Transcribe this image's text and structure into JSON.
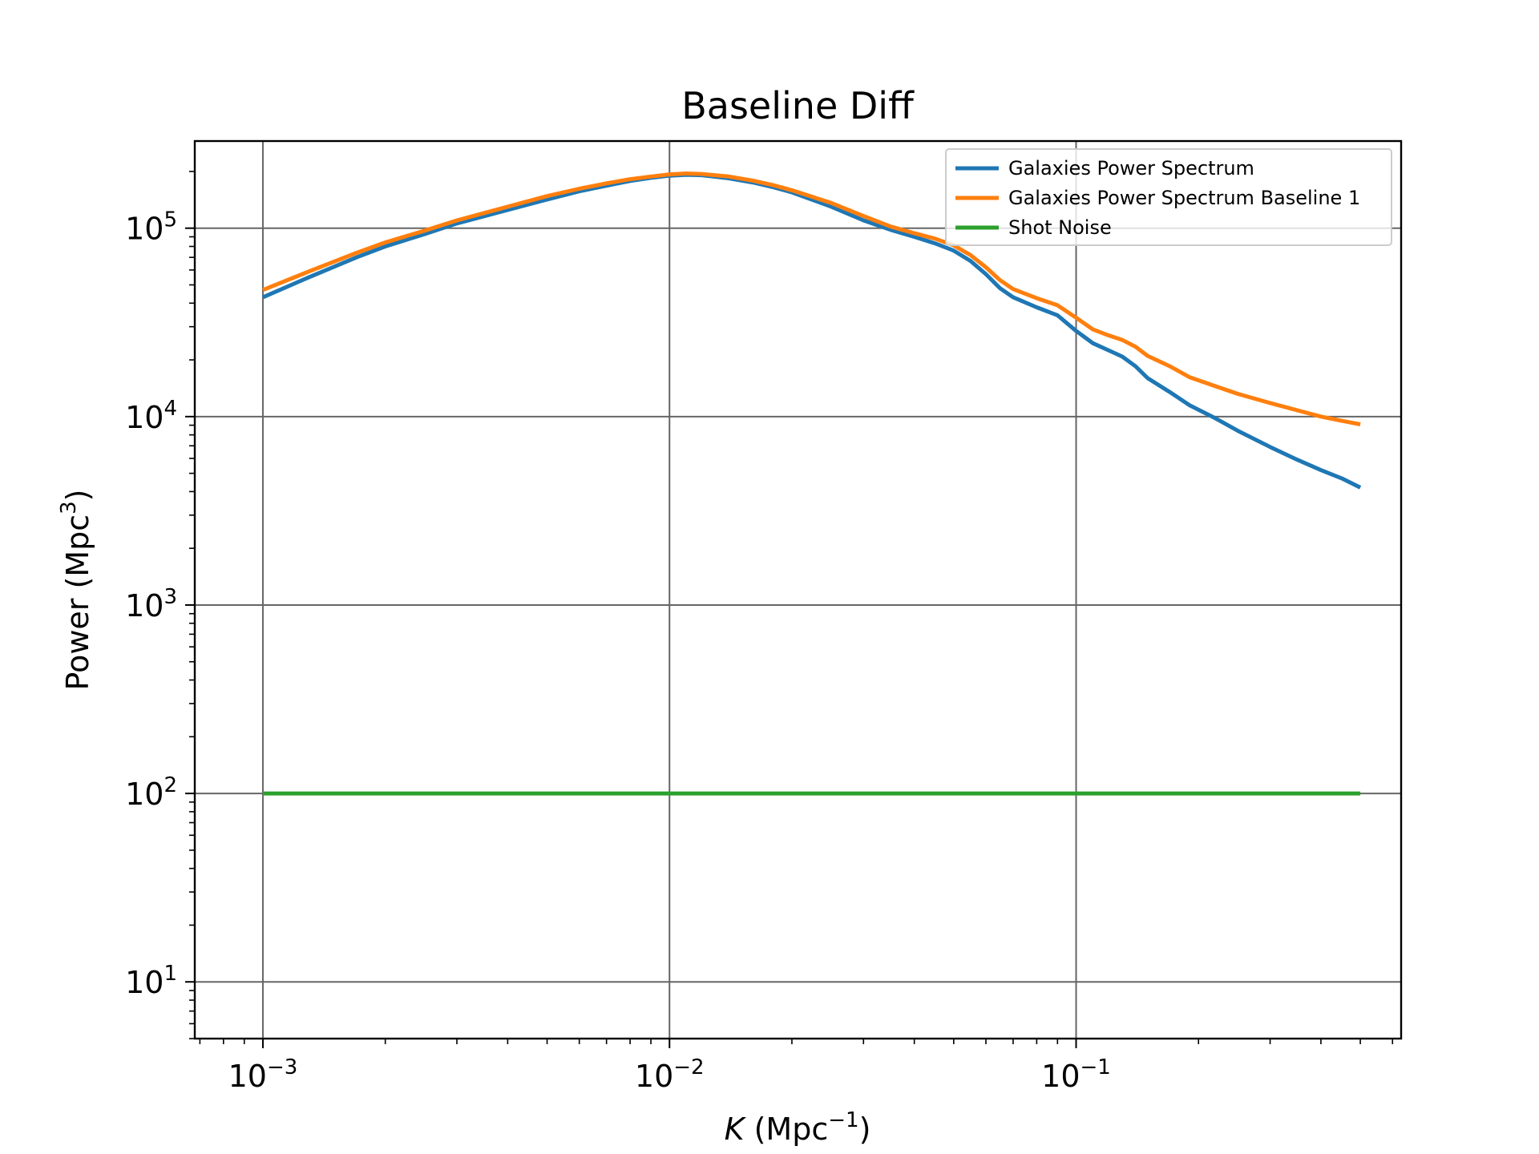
{
  "chart_data": {
    "type": "line",
    "title": "Baseline Diff",
    "xlabel": {
      "italic": "K",
      "text": " (Mpc",
      "sup": "−1",
      "close": ")"
    },
    "ylabel": {
      "text": "Power (Mpc",
      "sup": "3",
      "close": ")"
    },
    "xscale": "log",
    "yscale": "log",
    "xlim": [
      0.00068,
      0.63
    ],
    "ylim": [
      5,
      290000
    ],
    "x_ticks": [
      {
        "value": 0.001,
        "base": "10",
        "exp": "−3"
      },
      {
        "value": 0.01,
        "base": "10",
        "exp": "−2"
      },
      {
        "value": 0.1,
        "base": "10",
        "exp": "−1"
      }
    ],
    "y_ticks": [
      {
        "value": 10,
        "base": "10",
        "exp": "1"
      },
      {
        "value": 100,
        "base": "10",
        "exp": "2"
      },
      {
        "value": 1000,
        "base": "10",
        "exp": "3"
      },
      {
        "value": 10000,
        "base": "10",
        "exp": "4"
      },
      {
        "value": 100000,
        "base": "10",
        "exp": "5"
      }
    ],
    "grid": true,
    "legend": "top-right",
    "series": [
      {
        "name": "Galaxies Power Spectrum",
        "color": "#1f77b4",
        "points": [
          [
            0.001,
            43000
          ],
          [
            0.0013,
            55000
          ],
          [
            0.0017,
            70000
          ],
          [
            0.002,
            80000
          ],
          [
            0.0025,
            93000
          ],
          [
            0.003,
            106000
          ],
          [
            0.004,
            125000
          ],
          [
            0.005,
            142000
          ],
          [
            0.006,
            157000
          ],
          [
            0.007,
            168000
          ],
          [
            0.008,
            178000
          ],
          [
            0.009,
            185000
          ],
          [
            0.01,
            190000
          ],
          [
            0.011,
            192000
          ],
          [
            0.012,
            191000
          ],
          [
            0.014,
            184000
          ],
          [
            0.016,
            175000
          ],
          [
            0.018,
            165000
          ],
          [
            0.02,
            155000
          ],
          [
            0.025,
            130000
          ],
          [
            0.03,
            110000
          ],
          [
            0.035,
            98000
          ],
          [
            0.04,
            90000
          ],
          [
            0.045,
            83000
          ],
          [
            0.05,
            76000
          ],
          [
            0.055,
            67000
          ],
          [
            0.06,
            57000
          ],
          [
            0.065,
            48000
          ],
          [
            0.07,
            43000
          ],
          [
            0.08,
            38000
          ],
          [
            0.09,
            34500
          ],
          [
            0.1,
            28500
          ],
          [
            0.11,
            24500
          ],
          [
            0.12,
            22500
          ],
          [
            0.13,
            20800
          ],
          [
            0.14,
            18500
          ],
          [
            0.15,
            16000
          ],
          [
            0.17,
            13500
          ],
          [
            0.19,
            11500
          ],
          [
            0.22,
            9800
          ],
          [
            0.25,
            8400
          ],
          [
            0.3,
            6900
          ],
          [
            0.35,
            5900
          ],
          [
            0.4,
            5200
          ],
          [
            0.45,
            4700
          ],
          [
            0.5,
            4200
          ]
        ]
      },
      {
        "name": "Galaxies Power Spectrum Baseline 1",
        "color": "#ff7f0e",
        "points": [
          [
            0.001,
            47000
          ],
          [
            0.0013,
            59000
          ],
          [
            0.0017,
            74000
          ],
          [
            0.002,
            84000
          ],
          [
            0.0025,
            97000
          ],
          [
            0.003,
            110000
          ],
          [
            0.004,
            130000
          ],
          [
            0.005,
            148000
          ],
          [
            0.006,
            162000
          ],
          [
            0.007,
            173000
          ],
          [
            0.008,
            182000
          ],
          [
            0.009,
            188000
          ],
          [
            0.01,
            193000
          ],
          [
            0.011,
            195000
          ],
          [
            0.012,
            194000
          ],
          [
            0.014,
            188000
          ],
          [
            0.016,
            179000
          ],
          [
            0.018,
            169000
          ],
          [
            0.02,
            159000
          ],
          [
            0.025,
            136000
          ],
          [
            0.03,
            116000
          ],
          [
            0.035,
            102000
          ],
          [
            0.04,
            94000
          ],
          [
            0.045,
            88000
          ],
          [
            0.05,
            81000
          ],
          [
            0.055,
            72000
          ],
          [
            0.06,
            62000
          ],
          [
            0.065,
            53000
          ],
          [
            0.07,
            47500
          ],
          [
            0.08,
            42500
          ],
          [
            0.09,
            39000
          ],
          [
            0.1,
            33500
          ],
          [
            0.11,
            29000
          ],
          [
            0.12,
            27000
          ],
          [
            0.13,
            25500
          ],
          [
            0.14,
            23500
          ],
          [
            0.15,
            21000
          ],
          [
            0.17,
            18500
          ],
          [
            0.19,
            16200
          ],
          [
            0.22,
            14500
          ],
          [
            0.25,
            13200
          ],
          [
            0.3,
            11800
          ],
          [
            0.35,
            10800
          ],
          [
            0.4,
            10000
          ],
          [
            0.45,
            9500
          ],
          [
            0.5,
            9100
          ]
        ]
      },
      {
        "name": "Shot Noise",
        "color": "#2ca02c",
        "points": [
          [
            0.001,
            100
          ],
          [
            0.5,
            100
          ]
        ]
      }
    ]
  }
}
